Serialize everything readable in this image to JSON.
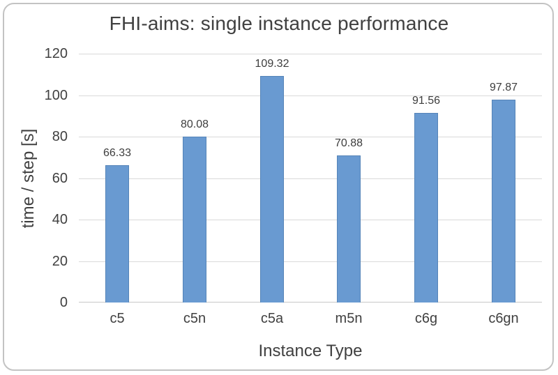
{
  "chart_data": {
    "type": "bar",
    "title": "FHI-aims: single instance performance",
    "xlabel": "Instance Type",
    "ylabel": "time / step [s]",
    "categories": [
      "c5",
      "c5n",
      "c5a",
      "m5n",
      "c6g",
      "c6gn"
    ],
    "values": [
      66.33,
      80.08,
      109.32,
      70.88,
      91.56,
      97.87
    ],
    "value_labels": [
      "66.33",
      "80.08",
      "109.32",
      "70.88",
      "91.56",
      "97.87"
    ],
    "ylim": [
      0,
      120
    ],
    "ytick_step": 20,
    "ytick_labels": [
      "0",
      "20",
      "40",
      "60",
      "80",
      "100",
      "120"
    ],
    "grid": true,
    "legend": "none",
    "colors": {
      "bar_fill": "#699ad1",
      "bar_border": "#5584b8",
      "gridline": "#d9d9d9",
      "axis_line": "#c7c7c7",
      "text": "#404040",
      "frame_border": "#c3c3c3",
      "background": "#ffffff"
    }
  }
}
